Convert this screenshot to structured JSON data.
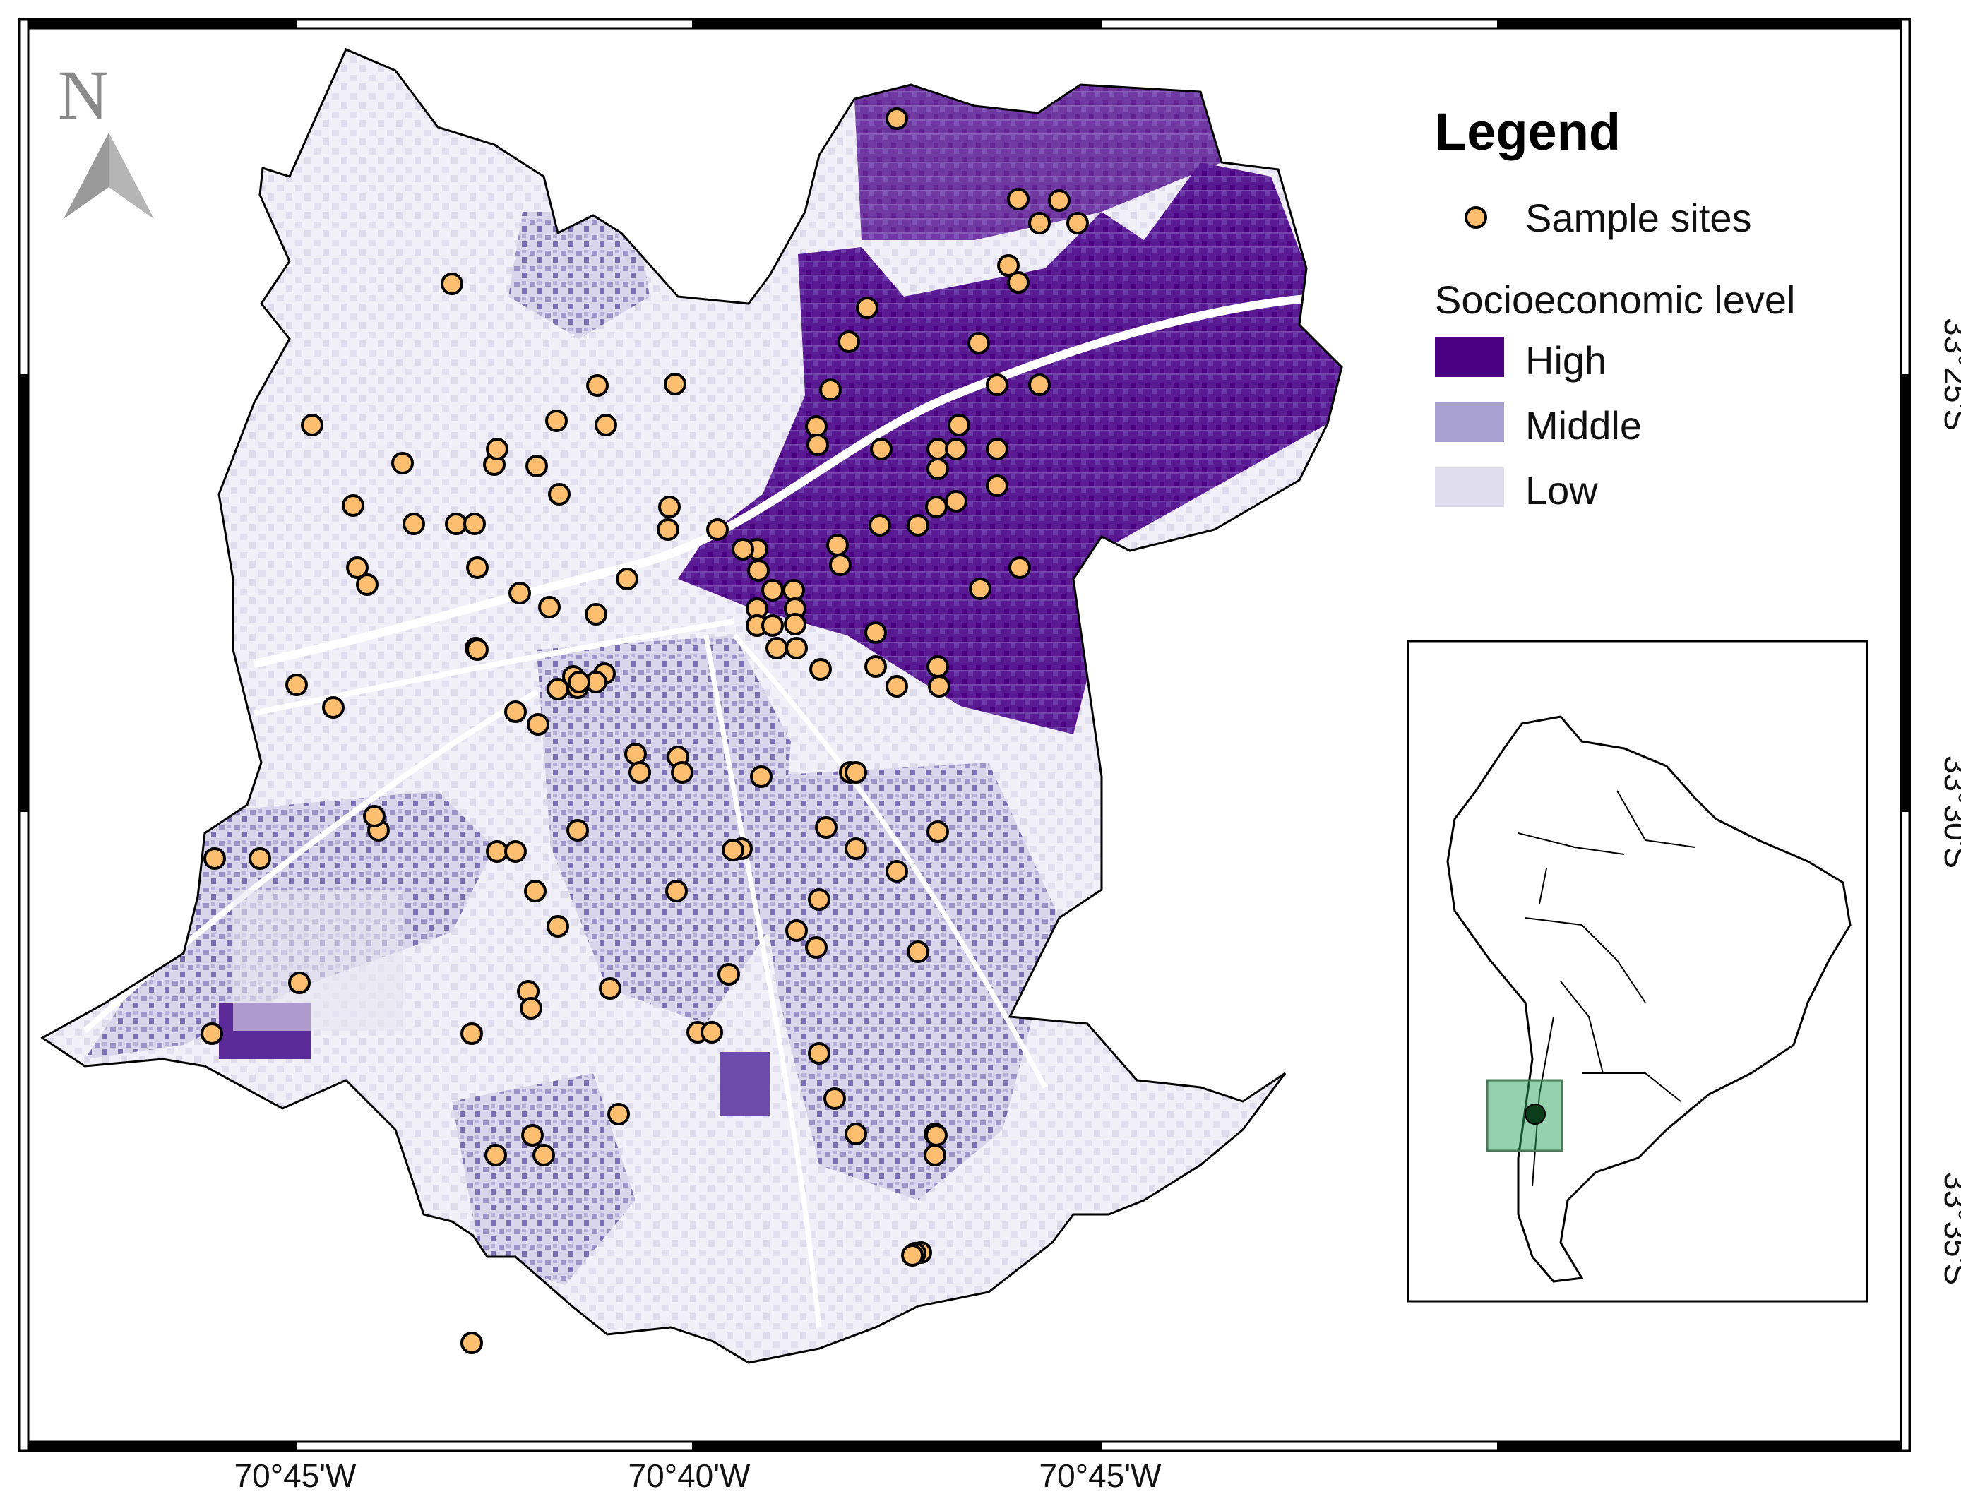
{
  "north_arrow": {
    "letter": "N"
  },
  "legend": {
    "title": "Legend",
    "sample_sites_label": "Sample sites",
    "socioeconomic_title": "Socioeconomic level",
    "levels": [
      {
        "label": "High",
        "color": "#4b0082"
      },
      {
        "label": "Middle",
        "color": "#a8a0d0"
      },
      {
        "label": "Low",
        "color": "#e0dded"
      }
    ],
    "marker_color": "#fdbf6f"
  },
  "coordinates": {
    "longitude_labels": [
      "70°45'W",
      "70°40'W",
      "70°45'W"
    ],
    "latitude_labels": [
      "33°25'S",
      "33°30'S",
      "33°35'S"
    ]
  },
  "inset": {
    "highlight_color": "#2ca25f"
  }
}
